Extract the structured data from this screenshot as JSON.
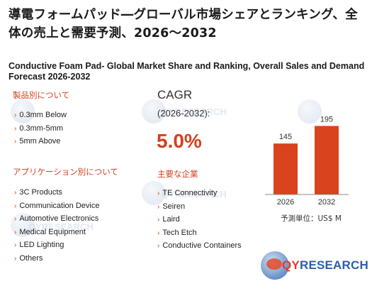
{
  "title_jp": "導電フォームパッド―グローバル市場シェアとランキング、全体の売上と需要予測、2026～2032",
  "title_en": "Conductive Foam Pad- Global Market Share and Ranking, Overall Sales and Demand Forecast 2026-2032",
  "section_product": {
    "heading": "製品別について",
    "items": [
      "0.3mm Below",
      "0.3mm-5mm",
      "5mm Above"
    ]
  },
  "section_application": {
    "heading": "アプリケーション別について",
    "items": [
      "3C Products",
      "Communication Device",
      "Automotive Electronics",
      "Medical Equipment",
      "LED Lighting",
      "Others"
    ]
  },
  "cagr": {
    "label": "CAGR",
    "period": "(2026-2032):",
    "value": "5.0%"
  },
  "companies": {
    "heading": "主要な企業",
    "items": [
      "TE Connectivity",
      "Seiren",
      "Laird",
      "Tech Etch",
      "Conductive Containers"
    ]
  },
  "chart_data": {
    "type": "bar",
    "categories": [
      "2026",
      "2032"
    ],
    "values": [
      145,
      195
    ],
    "value_labels": [
      "145",
      "195"
    ],
    "unit_label": "予測単位：US$ M",
    "bar_color": "#d9431e",
    "ylim": [
      0,
      210
    ],
    "grid": false
  },
  "logo": {
    "text_q": "QY",
    "text_r": "RESEARCH"
  },
  "watermark_text": "QYRESEARCH",
  "colors": {
    "accent": "#d3411f",
    "bar": "#d9431e",
    "text": "#222222"
  },
  "bullet_glyph": "›"
}
